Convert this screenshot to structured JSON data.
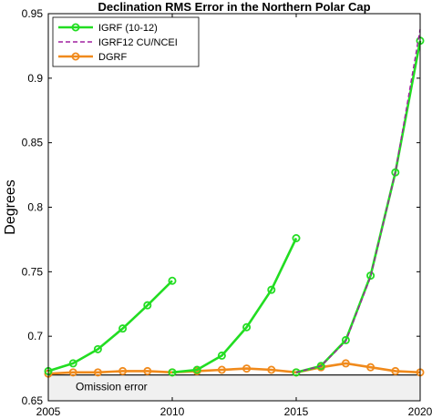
{
  "chart_data": {
    "type": "line",
    "title": "Declination RMS Error in the Northern Polar Cap",
    "xlabel": "",
    "ylabel": "Degrees",
    "xlim": [
      2005,
      2020
    ],
    "ylim": [
      0.65,
      0.95
    ],
    "xticks": [
      2005,
      2010,
      2015,
      2020
    ],
    "yticks": [
      0.65,
      0.7,
      0.75,
      0.8,
      0.85,
      0.9,
      0.95
    ],
    "ytick_labels": [
      "0.65",
      "0.7",
      "0.75",
      "0.8",
      "0.85",
      "0.9",
      "0.95"
    ],
    "grid": false,
    "legend_position": "top-left",
    "series": [
      {
        "name": "IGRF (10-12)",
        "color": "#22dd22",
        "style": "solid",
        "marker": "circle",
        "segments": [
          {
            "x": [
              2005,
              2006,
              2007,
              2008,
              2009,
              2010
            ],
            "y": [
              0.673,
              0.679,
              0.69,
              0.706,
              0.724,
              0.743
            ]
          },
          {
            "x": [
              2010,
              2011,
              2012,
              2013,
              2014,
              2015
            ],
            "y": [
              0.672,
              0.674,
              0.685,
              0.707,
              0.736,
              0.776
            ]
          },
          {
            "x": [
              2015,
              2016,
              2017,
              2018,
              2019,
              2020
            ],
            "y": [
              0.672,
              0.677,
              0.697,
              0.747,
              0.827,
              0.929
            ]
          }
        ]
      },
      {
        "name": "IGRF12 CU/NCEI",
        "color": "#a020a0",
        "style": "dashed",
        "marker": "none",
        "segments": [
          {
            "x": [
              2015,
              2016,
              2017,
              2018,
              2019,
              2020
            ],
            "y": [
              0.672,
              0.677,
              0.696,
              0.746,
              0.827,
              0.938
            ]
          }
        ]
      },
      {
        "name": "DGRF",
        "color": "#f08a1c",
        "style": "solid",
        "marker": "circle",
        "segments": [
          {
            "x": [
              2005,
              2006,
              2007,
              2008,
              2009,
              2010,
              2011,
              2012,
              2013,
              2014,
              2015,
              2016,
              2017,
              2018,
              2019,
              2020
            ],
            "y": [
              0.671,
              0.672,
              0.672,
              0.673,
              0.673,
              0.672,
              0.673,
              0.674,
              0.675,
              0.674,
              0.672,
              0.676,
              0.679,
              0.676,
              0.673,
              0.672
            ]
          }
        ]
      }
    ],
    "omission": {
      "label": "Omission error",
      "y": 0.67,
      "fill_color": "#f0f0f0"
    }
  }
}
